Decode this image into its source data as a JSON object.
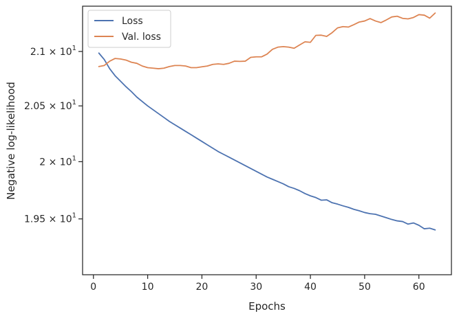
{
  "chart_data": {
    "type": "line",
    "title": "",
    "xlabel": "Epochs",
    "ylabel": "Negative log-likelihood",
    "yscale": "log",
    "xlim": [
      -2,
      66
    ],
    "ylim": [
      19.024,
      21.425
    ],
    "x_ticks": [
      0,
      10,
      20,
      30,
      40,
      50,
      60
    ],
    "x_tick_labels": [
      "0",
      "10",
      "20",
      "30",
      "40",
      "50",
      "60"
    ],
    "y_ticks": [
      {
        "value": 19.5,
        "mantissa": "1.95",
        "exponent": "1"
      },
      {
        "value": 20.0,
        "mantissa": "2",
        "exponent": "1"
      },
      {
        "value": 20.5,
        "mantissa": "2.05",
        "exponent": "1"
      },
      {
        "value": 21.0,
        "mantissa": "2.1",
        "exponent": "1"
      }
    ],
    "grid": false,
    "legend_position": "top-left",
    "x": [
      1,
      2,
      3,
      4,
      5,
      6,
      7,
      8,
      9,
      10,
      11,
      12,
      13,
      14,
      15,
      16,
      17,
      18,
      19,
      20,
      21,
      22,
      23,
      24,
      25,
      26,
      27,
      28,
      29,
      30,
      31,
      32,
      33,
      34,
      35,
      36,
      37,
      38,
      39,
      40,
      41,
      42,
      43,
      44,
      45,
      46,
      47,
      48,
      49,
      50,
      51,
      52,
      53,
      54,
      55,
      56,
      57,
      58,
      59,
      60,
      61,
      62,
      63
    ],
    "series": [
      {
        "name": "Loss",
        "color": "#4c72b0",
        "values": [
          20.985,
          20.925,
          20.84,
          20.775,
          20.725,
          20.675,
          20.63,
          20.58,
          20.54,
          20.5,
          20.465,
          20.43,
          20.395,
          20.36,
          20.33,
          20.3,
          20.27,
          20.24,
          20.21,
          20.18,
          20.15,
          20.12,
          20.09,
          20.065,
          20.04,
          20.015,
          19.99,
          19.965,
          19.94,
          19.915,
          19.89,
          19.865,
          19.845,
          19.825,
          19.805,
          19.78,
          19.765,
          19.745,
          19.72,
          19.7,
          19.685,
          19.662,
          19.665,
          19.64,
          19.628,
          19.613,
          19.6,
          19.583,
          19.57,
          19.555,
          19.545,
          19.54,
          19.525,
          19.51,
          19.495,
          19.483,
          19.477,
          19.455,
          19.465,
          19.445,
          19.415,
          19.42,
          19.405
        ]
      },
      {
        "name": "Val. loss",
        "color": "#dd8452",
        "values": [
          20.86,
          20.87,
          20.91,
          20.935,
          20.93,
          20.92,
          20.9,
          20.89,
          20.865,
          20.85,
          20.845,
          20.84,
          20.845,
          20.86,
          20.87,
          20.87,
          20.865,
          20.85,
          20.85,
          20.858,
          20.865,
          20.88,
          20.885,
          20.88,
          20.89,
          20.91,
          20.908,
          20.91,
          20.945,
          20.95,
          20.95,
          20.975,
          21.02,
          21.04,
          21.045,
          21.04,
          21.03,
          21.06,
          21.09,
          21.085,
          21.15,
          21.152,
          21.14,
          21.175,
          21.22,
          21.232,
          21.228,
          21.25,
          21.275,
          21.285,
          21.308,
          21.285,
          21.27,
          21.295,
          21.323,
          21.33,
          21.31,
          21.305,
          21.318,
          21.345,
          21.34,
          21.312,
          21.36
        ]
      }
    ]
  }
}
